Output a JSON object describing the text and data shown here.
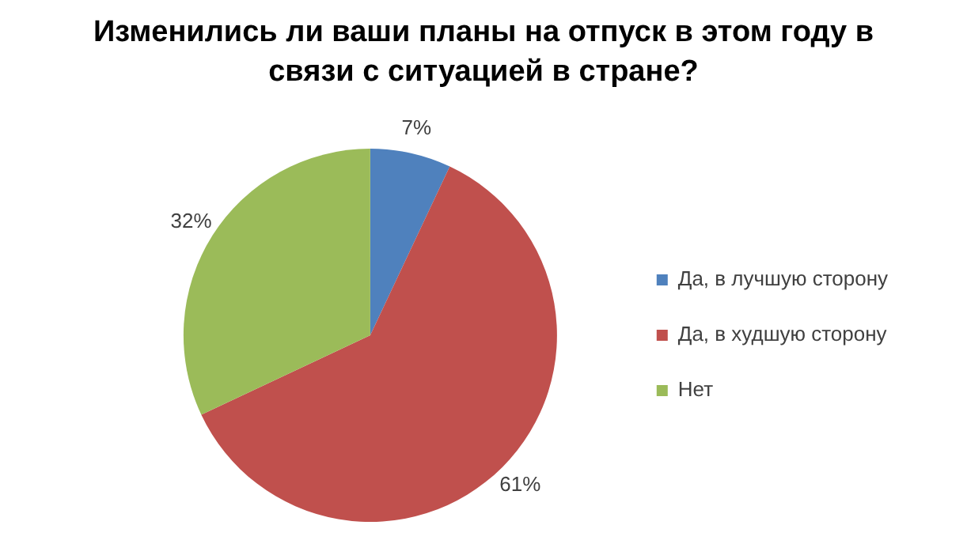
{
  "chart_data": {
    "type": "pie",
    "title": "Изменились ли ваши планы на отпуск в этом году в связи с ситуацией в стране?",
    "categories": [
      "Да, в лучшую сторону",
      "Да, в худшую сторону",
      "Нет"
    ],
    "values": [
      7,
      61,
      32
    ],
    "colors": [
      "#4f81bd",
      "#c0504d",
      "#9bbb59"
    ],
    "value_labels": [
      "7%",
      "61%",
      "32%"
    ],
    "legend": "right"
  }
}
